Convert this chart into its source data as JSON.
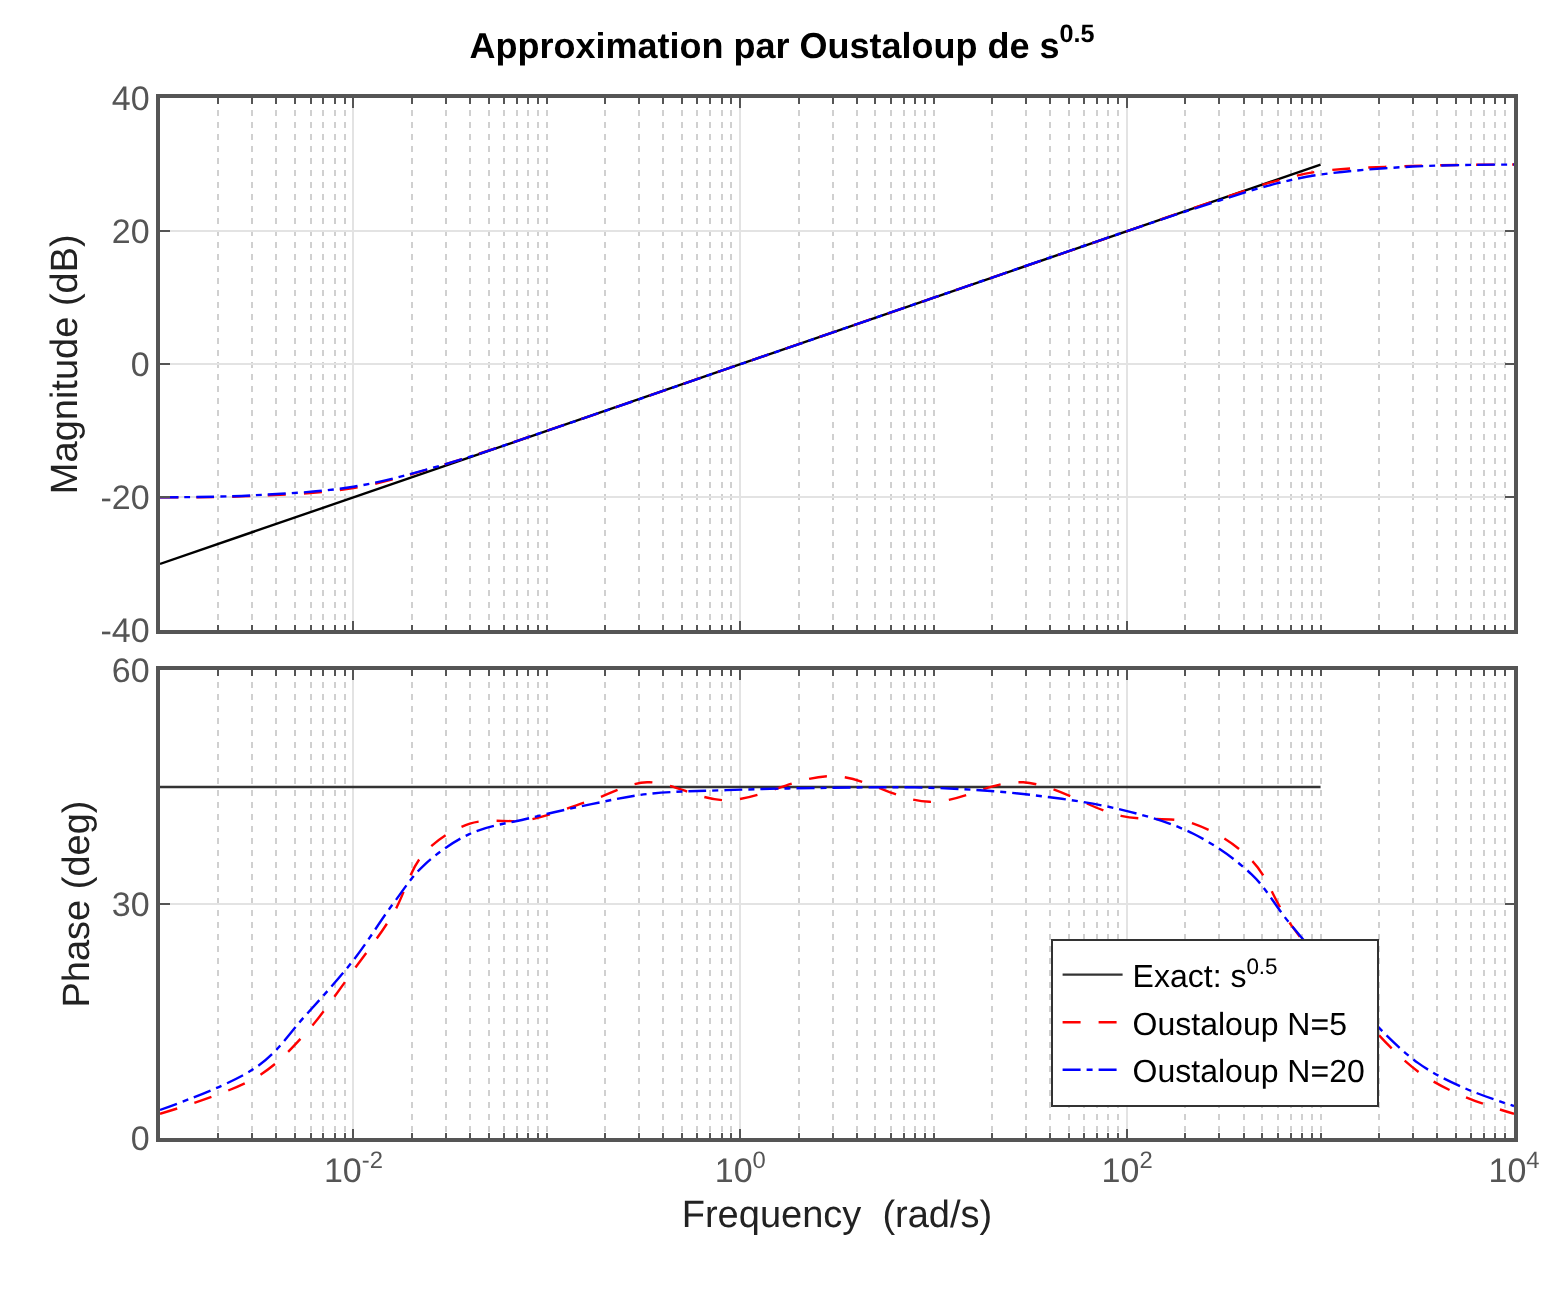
{
  "chart_data": [
    {
      "type": "line",
      "title": "Approximation par Oustaloup de s$^{0.5}$",
      "ylabel": "Magnitude (dB)",
      "log": "x",
      "grid": true,
      "legend": false,
      "tick_labels": "y",
      "xlim": [
        0.001,
        10000
      ],
      "xticks": [
        {
          "value": 0.01,
          "label": "10$^{-2}$"
        },
        {
          "value": 1,
          "label": "10$^{0}$"
        },
        {
          "value": 100,
          "label": "10$^{2}$"
        },
        {
          "value": 10000,
          "label": "10$^{4}$"
        }
      ],
      "ylim": [
        -40,
        40
      ],
      "yticks": [
        -40,
        -20,
        0,
        20,
        40
      ],
      "series": [
        {
          "color": "#000000",
          "line_style": "solid",
          "x": [
            0.001,
            1000
          ],
          "values": [
            -30,
            30
          ]
        },
        {
          "color": "#ff0000",
          "line_style": "dashed",
          "x": [
            0.001,
            0.003,
            0.01,
            0.03,
            0.1,
            1,
            10,
            100,
            300,
            600,
            1000,
            3000,
            10000
          ],
          "values": [
            -20,
            -19.8,
            -18.6,
            -15,
            -10,
            0,
            10,
            20,
            24.8,
            27.6,
            29,
            29.8,
            30
          ]
        },
        {
          "color": "#0000ff",
          "line_style": "dashdot",
          "x": [
            0.001,
            0.003,
            0.01,
            0.03,
            0.1,
            1,
            10,
            100,
            300,
            600,
            1000,
            3000,
            10000
          ],
          "values": [
            -20,
            -19.7,
            -18.4,
            -15,
            -10,
            0,
            10,
            20,
            24.6,
            27.2,
            28.5,
            29.7,
            30
          ]
        }
      ]
    },
    {
      "type": "line",
      "xlabel": "Frequency  (rad/s)",
      "ylabel": "Phase (deg)",
      "log": "x",
      "grid": true,
      "legend": "bottom right",
      "xlim": [
        0.001,
        10000
      ],
      "xticks": [
        {
          "value": 0.01,
          "label": "10$^{-2}$"
        },
        {
          "value": 1,
          "label": "10$^{0}$"
        },
        {
          "value": 100,
          "label": "10$^{2}$"
        },
        {
          "value": 10000,
          "label": "10$^{4}$"
        }
      ],
      "ylim": [
        0,
        60
      ],
      "yticks": [
        0,
        30,
        60
      ],
      "series": [
        {
          "name": "Exact: s$^{0.5}$",
          "color": "#333333",
          "line_style": "solid",
          "x": [
            0.001,
            1000
          ],
          "values": [
            45,
            45
          ]
        },
        {
          "name": "Oustaloup N=5",
          "color": "#ff0000",
          "line_style": "dashed",
          "x": [
            0.001,
            0.0032,
            0.0056,
            0.01,
            0.016,
            0.023,
            0.04,
            0.081,
            0.17,
            0.33,
            0.85,
            3,
            9.5,
            29,
            93,
            220,
            440,
            710,
            3200,
            10000
          ],
          "values": [
            3.1,
            7.9,
            13.3,
            21.5,
            28.7,
            36.4,
            40.3,
            40.8,
            43.3,
            45.6,
            43.3,
            46.4,
            43.1,
            45.6,
            41.3,
            40.3,
            35.6,
            27.2,
            8.5,
            3.1
          ]
        },
        {
          "name": "Oustaloup N=20",
          "color": "#0000ff",
          "line_style": "dashdot",
          "x": [
            0.001,
            0.0032,
            0.0056,
            0.01,
            0.016,
            0.023,
            0.04,
            0.081,
            0.17,
            0.33,
            0.85,
            3,
            9.5,
            29,
            93,
            220,
            440,
            710,
            3200,
            10000
          ],
          "values": [
            3.6,
            9.2,
            15.6,
            22.8,
            30,
            34.9,
            39,
            41,
            42.8,
            44.1,
            44.6,
            44.9,
            44.9,
            44.1,
            42.1,
            39,
            33.8,
            27.2,
            9.6,
            4.1
          ]
        }
      ]
    }
  ]
}
